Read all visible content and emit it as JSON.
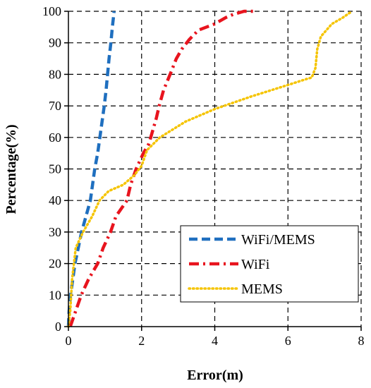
{
  "chart_data": {
    "type": "line",
    "title": "",
    "xlabel": "Error(m)",
    "ylabel": "Percentage(%)",
    "xlim": [
      0,
      8
    ],
    "ylim": [
      0,
      100
    ],
    "x_ticks": [
      0,
      2,
      4,
      6,
      8
    ],
    "y_ticks": [
      0,
      10,
      20,
      30,
      40,
      50,
      60,
      70,
      80,
      90,
      100
    ],
    "grid": true,
    "legend_position": "bottom-right",
    "series": [
      {
        "name": "WiFi/MEMS",
        "color": "#1f6fbf",
        "style": "dashed",
        "points": [
          [
            0.0,
            0
          ],
          [
            0.02,
            5
          ],
          [
            0.06,
            10
          ],
          [
            0.12,
            15
          ],
          [
            0.18,
            20
          ],
          [
            0.27,
            25
          ],
          [
            0.36,
            30
          ],
          [
            0.48,
            35
          ],
          [
            0.6,
            40
          ],
          [
            0.66,
            45
          ],
          [
            0.72,
            50
          ],
          [
            0.8,
            55
          ],
          [
            0.86,
            60
          ],
          [
            0.92,
            65
          ],
          [
            0.98,
            70
          ],
          [
            1.03,
            75
          ],
          [
            1.07,
            80
          ],
          [
            1.11,
            85
          ],
          [
            1.16,
            90
          ],
          [
            1.2,
            95
          ],
          [
            1.25,
            100
          ]
        ]
      },
      {
        "name": "WiFi",
        "color": "#e8141e",
        "style": "dashdot",
        "points": [
          [
            0.05,
            0
          ],
          [
            0.2,
            5
          ],
          [
            0.35,
            10
          ],
          [
            0.55,
            15
          ],
          [
            0.8,
            20
          ],
          [
            0.95,
            25
          ],
          [
            1.15,
            30
          ],
          [
            1.3,
            35
          ],
          [
            1.6,
            40
          ],
          [
            1.7,
            45
          ],
          [
            1.85,
            50
          ],
          [
            2.05,
            55
          ],
          [
            2.2,
            58
          ],
          [
            2.3,
            62
          ],
          [
            2.4,
            66
          ],
          [
            2.48,
            70
          ],
          [
            2.6,
            75
          ],
          [
            2.78,
            80
          ],
          [
            2.95,
            85
          ],
          [
            3.1,
            88
          ],
          [
            3.3,
            91
          ],
          [
            3.55,
            94
          ],
          [
            4.0,
            96
          ],
          [
            4.3,
            98
          ],
          [
            4.5,
            99
          ],
          [
            4.8,
            100
          ],
          [
            5.1,
            100
          ]
        ]
      },
      {
        "name": "MEMS",
        "color": "#f5c400",
        "style": "dotted",
        "points": [
          [
            0.0,
            0
          ],
          [
            0.05,
            5
          ],
          [
            0.1,
            15
          ],
          [
            0.2,
            25
          ],
          [
            0.4,
            30
          ],
          [
            0.65,
            35
          ],
          [
            0.85,
            40
          ],
          [
            1.1,
            43
          ],
          [
            1.5,
            45
          ],
          [
            1.8,
            48
          ],
          [
            2.0,
            51
          ],
          [
            2.15,
            56
          ],
          [
            2.5,
            60
          ],
          [
            3.2,
            65
          ],
          [
            4.0,
            69
          ],
          [
            5.0,
            73
          ],
          [
            6.1,
            77
          ],
          [
            6.5,
            78.5
          ],
          [
            6.65,
            79
          ],
          [
            6.75,
            82
          ],
          [
            6.8,
            88
          ],
          [
            6.9,
            92
          ],
          [
            7.2,
            96
          ],
          [
            7.5,
            98
          ],
          [
            7.75,
            100
          ]
        ]
      }
    ]
  }
}
